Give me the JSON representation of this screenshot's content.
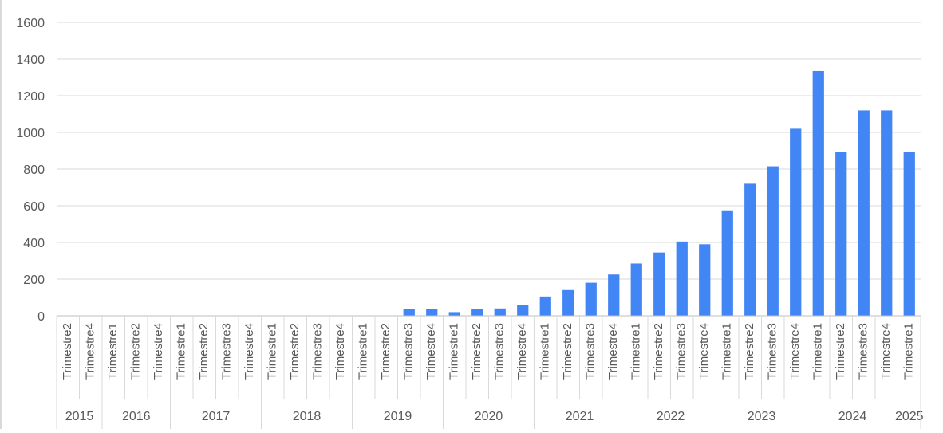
{
  "chart_data": {
    "type": "bar",
    "title": "",
    "xlabel": "",
    "ylabel": "",
    "ylim": [
      0,
      1600
    ],
    "y_ticks": [
      0,
      200,
      400,
      600,
      800,
      1000,
      1200,
      1400,
      1600
    ],
    "grid": true,
    "legend": "none",
    "bar_color": "#4285f4",
    "grid_color": "#d9d9d9",
    "axis_text_color": "#595959",
    "categories": [
      "Trimestre2",
      "Trimestre4",
      "Trimestre1",
      "Trimestre2",
      "Trimestre4",
      "Trimestre1",
      "Trimestre2",
      "Trimestre3",
      "Trimestre4",
      "Trimestre1",
      "Trimestre2",
      "Trimestre3",
      "Trimestre4",
      "Trimestre1",
      "Trimestre2",
      "Trimestre3",
      "Trimestre4",
      "Trimestre1",
      "Trimestre2",
      "Trimestre3",
      "Trimestre4",
      "Trimestre1",
      "Trimestre2",
      "Trimestre3",
      "Trimestre4",
      "Trimestre1",
      "Trimestre2",
      "Trimestre3",
      "Trimestre4",
      "Trimestre1",
      "Trimestre2",
      "Trimestre3",
      "Trimestre4",
      "Trimestre1",
      "Trimestre2",
      "Trimestre3",
      "Trimestre4",
      "Trimestre1"
    ],
    "groups": [
      {
        "label": "2015",
        "count": 2
      },
      {
        "label": "2016",
        "count": 3
      },
      {
        "label": "2017",
        "count": 4
      },
      {
        "label": "2018",
        "count": 4
      },
      {
        "label": "2019",
        "count": 4
      },
      {
        "label": "2020",
        "count": 4
      },
      {
        "label": "2021",
        "count": 4
      },
      {
        "label": "2022",
        "count": 4
      },
      {
        "label": "2023",
        "count": 4
      },
      {
        "label": "2024",
        "count": 4
      },
      {
        "label": "2025",
        "count": 1
      }
    ],
    "values": [
      0,
      0,
      0,
      0,
      0,
      0,
      0,
      0,
      0,
      0,
      0,
      0,
      0,
      0,
      0,
      35,
      35,
      20,
      35,
      40,
      60,
      105,
      140,
      180,
      225,
      285,
      345,
      405,
      390,
      575,
      720,
      815,
      1020,
      1335,
      895,
      1120,
      1120,
      895
    ]
  }
}
